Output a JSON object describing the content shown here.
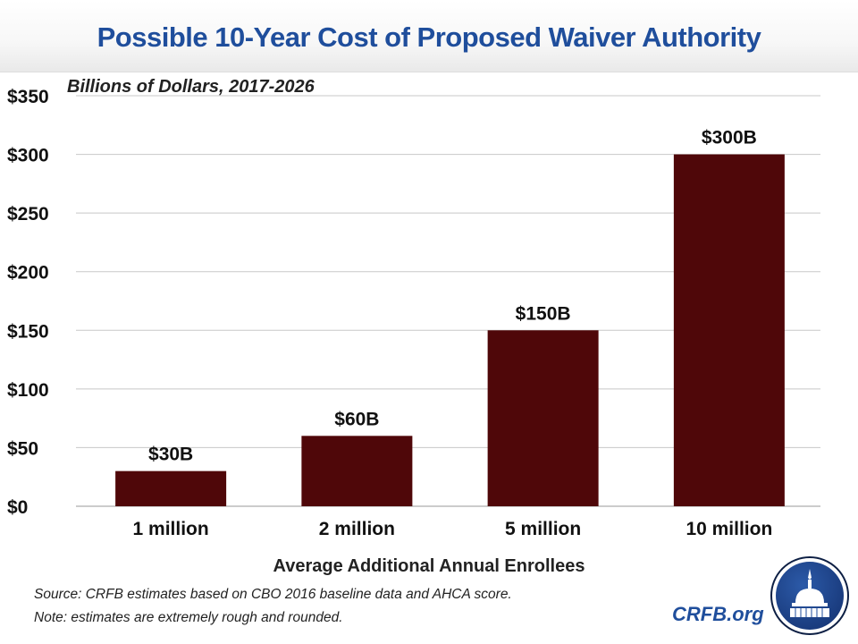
{
  "header": {
    "title": "Possible 10-Year Cost of Proposed Waiver Authority"
  },
  "chart_data": {
    "type": "bar",
    "title": "Possible 10-Year Cost of Proposed Waiver Authority",
    "subtitle": "Billions of Dollars, 2017-2026",
    "xlabel": "Average Additional Annual Enrollees",
    "ylabel": "",
    "categories": [
      "1 million",
      "2 million",
      "5 million",
      "10 million"
    ],
    "values": [
      30,
      60,
      150,
      300
    ],
    "data_labels": [
      "$30B",
      "$60B",
      "$150B",
      "$300B"
    ],
    "ylim": [
      0,
      350
    ],
    "yticks": [
      0,
      50,
      100,
      150,
      200,
      250,
      300,
      350
    ],
    "ytick_labels": [
      "$0",
      "$50",
      "$100",
      "$150",
      "$200",
      "$250",
      "$300",
      "$350"
    ],
    "grid": true,
    "bar_color": "#4f0709"
  },
  "footer": {
    "source": "Source: CRFB estimates based on CBO 2016 baseline data and AHCA score.",
    "note": "Note: estimates are extremely rough and rounded.",
    "site": "CRFB.org"
  },
  "logo": {
    "icon": "capitol-dome-icon"
  }
}
